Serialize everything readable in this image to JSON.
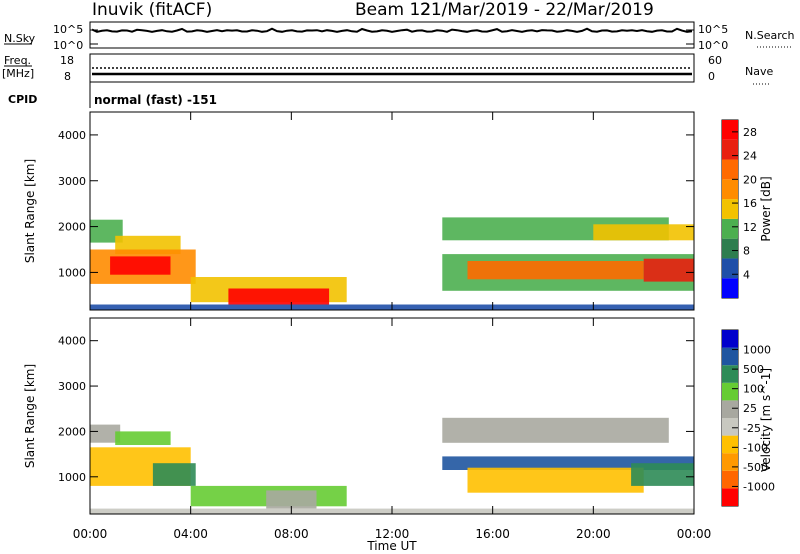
{
  "header": {
    "site": "Inuvik (fitACF)",
    "beam": "Beam 12",
    "dates": "21/Mar/2019 - 22/Mar/2019"
  },
  "strip_noise": {
    "left_label": "N.Sky",
    "right_label": "N.Search",
    "left_ticks": [
      "10^5",
      "10^0"
    ],
    "right_ticks": [
      "10^5",
      "10^0"
    ]
  },
  "strip_freq": {
    "left_label_1": "Freq.",
    "left_label_2": "[MHz]",
    "right_label": "Nave",
    "left_ticks": [
      "18",
      "8"
    ],
    "right_ticks": [
      "60",
      "0"
    ]
  },
  "cpid": {
    "label": "CPID",
    "value": "normal (fast) -151"
  },
  "colors": {
    "power": [
      "#0000ff",
      "#1f4fa8",
      "#2e7d4f",
      "#4caf50",
      "#f2c200",
      "#ff8c00",
      "#ff6a00",
      "#e82010",
      "#ff0000"
    ],
    "velocity": [
      "#ff0000",
      "#ff6600",
      "#ff9900",
      "#ffc000",
      "#c8c8c0",
      "#a8a8a0",
      "#66cc33",
      "#2e8b57",
      "#1f55a0",
      "#0000cc"
    ]
  },
  "chart_data": [
    {
      "type": "heatmap",
      "title": "",
      "xlabel": "",
      "ylabel": "Slant Range [km]",
      "xlim": [
        "00:00",
        "24:00"
      ],
      "ylim": [
        180,
        4500
      ],
      "x_ticks": [
        "00:00",
        "04:00",
        "08:00",
        "12:00",
        "16:00",
        "20:00",
        "00:00"
      ],
      "y_ticks": [
        "1000",
        "2000",
        "3000",
        "4000"
      ],
      "colorbar": {
        "label": "Power [dB]",
        "ticks": [
          "4",
          "8",
          "12",
          "16",
          "20",
          "24",
          "28"
        ],
        "range": [
          0,
          30
        ]
      },
      "regions": [
        {
          "hours": [
            0.0,
            1.3
          ],
          "range_km": [
            1650,
            2150
          ],
          "value": 10
        },
        {
          "hours": [
            1.0,
            3.6
          ],
          "range_km": [
            1400,
            1800
          ],
          "value": 14
        },
        {
          "hours": [
            0.0,
            4.2
          ],
          "range_km": [
            750,
            1500
          ],
          "value": 18
        },
        {
          "hours": [
            0.8,
            3.2
          ],
          "range_km": [
            950,
            1350
          ],
          "value": 28
        },
        {
          "hours": [
            4.0,
            10.2
          ],
          "range_km": [
            350,
            900
          ],
          "value": 16
        },
        {
          "hours": [
            5.5,
            9.5
          ],
          "range_km": [
            300,
            650
          ],
          "value": 28
        },
        {
          "hours": [
            14.0,
            23.0
          ],
          "range_km": [
            1700,
            2200
          ],
          "value": 10
        },
        {
          "hours": [
            20.0,
            24.0
          ],
          "range_km": [
            1700,
            2050
          ],
          "value": 14
        },
        {
          "hours": [
            14.0,
            24.0
          ],
          "range_km": [
            600,
            1400
          ],
          "value": 12
        },
        {
          "hours": [
            15.0,
            22.0
          ],
          "range_km": [
            850,
            1250
          ],
          "value": 20
        },
        {
          "hours": [
            22.0,
            24.0
          ],
          "range_km": [
            800,
            1300
          ],
          "value": 26
        },
        {
          "hours": [
            0.0,
            24.0
          ],
          "range_km": [
            180,
            300
          ],
          "value": 6
        }
      ]
    },
    {
      "type": "heatmap",
      "title": "",
      "xlabel": "Time UT",
      "ylabel": "Slant Range [km]",
      "xlim": [
        "00:00",
        "24:00"
      ],
      "ylim": [
        180,
        4500
      ],
      "x_ticks": [
        "00:00",
        "04:00",
        "08:00",
        "12:00",
        "16:00",
        "20:00",
        "00:00"
      ],
      "y_ticks": [
        "1000",
        "2000",
        "3000",
        "4000"
      ],
      "colorbar": {
        "label": "Velocity [m s^-1]",
        "ticks": [
          "-1000",
          "-500",
          "-100",
          "-25",
          "25",
          "100",
          "500",
          "1000"
        ]
      },
      "regions": [
        {
          "hours": [
            0.0,
            1.2
          ],
          "range_km": [
            1750,
            2150
          ],
          "value": -10
        },
        {
          "hours": [
            1.0,
            3.2
          ],
          "range_km": [
            1700,
            2000
          ],
          "value": 80
        },
        {
          "hours": [
            0.0,
            4.0
          ],
          "range_km": [
            800,
            1650
          ],
          "value": -200
        },
        {
          "hours": [
            2.5,
            4.2
          ],
          "range_km": [
            800,
            1300
          ],
          "value": 150
        },
        {
          "hours": [
            4.0,
            10.2
          ],
          "range_km": [
            350,
            800
          ],
          "value": 60
        },
        {
          "hours": [
            7.0,
            9.0
          ],
          "range_km": [
            300,
            700
          ],
          "value": 10
        },
        {
          "hours": [
            14.0,
            23.0
          ],
          "range_km": [
            1750,
            2300
          ],
          "value": 0
        },
        {
          "hours": [
            14.0,
            24.0
          ],
          "range_km": [
            1150,
            1450
          ],
          "value": 600
        },
        {
          "hours": [
            15.0,
            22.0
          ],
          "range_km": [
            650,
            1200
          ],
          "value": -300
        },
        {
          "hours": [
            21.5,
            24.0
          ],
          "range_km": [
            800,
            1300
          ],
          "value": 150
        },
        {
          "hours": [
            0.0,
            24.0
          ],
          "range_km": [
            180,
            300
          ],
          "value": -60
        }
      ]
    }
  ]
}
